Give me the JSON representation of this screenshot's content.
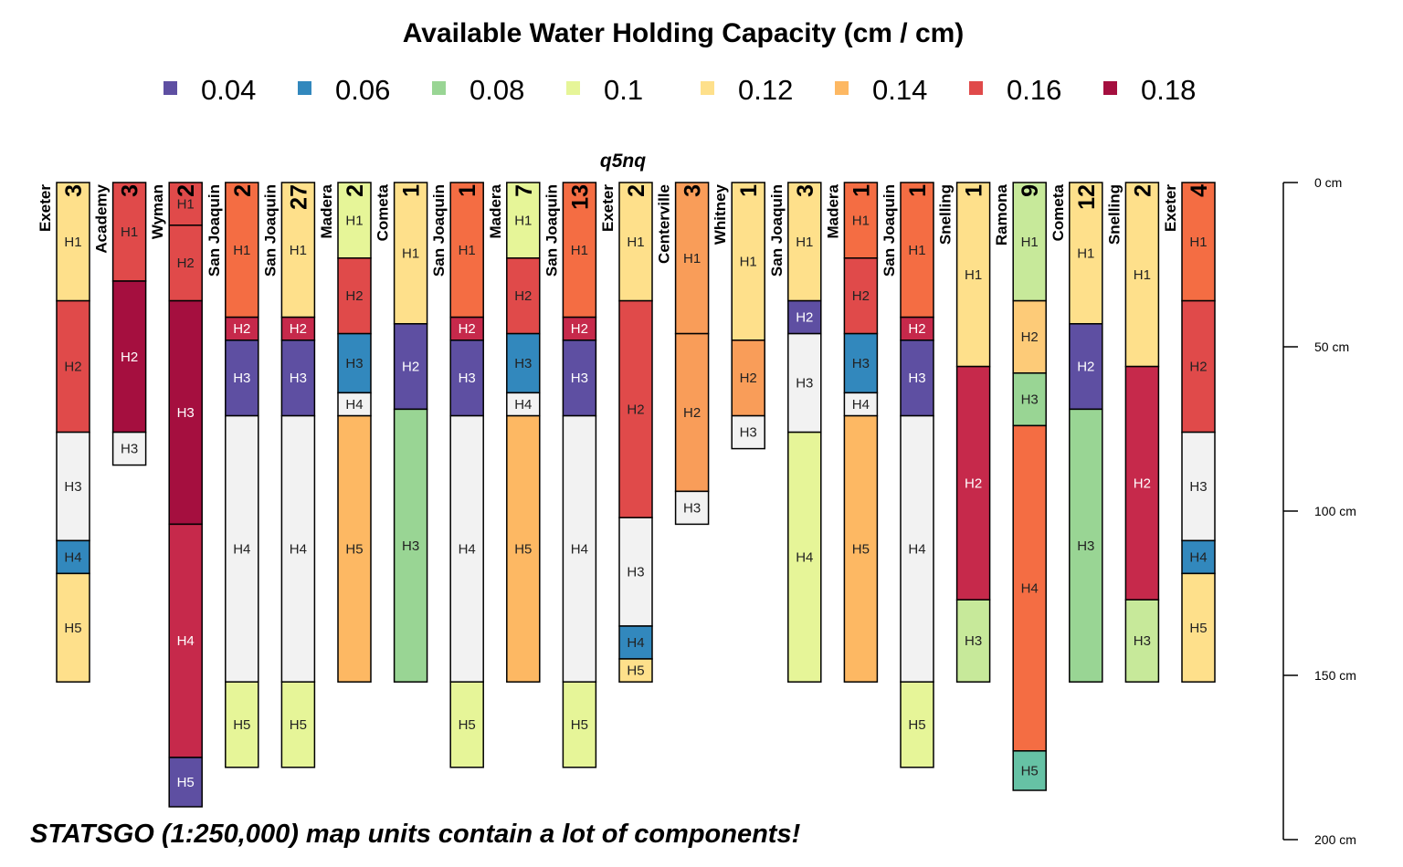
{
  "chart_data": {
    "type": "soil-profile-sketch",
    "title": "Available Water Holding Capacity (cm / cm)",
    "subtitle": "q5nq",
    "caption": "STATSGO (1:250,000) map units contain a lot of components!",
    "legend": [
      {
        "label": "0.04",
        "color": "#5E4FA2"
      },
      {
        "label": "0.06",
        "color": "#3288BD"
      },
      {
        "label": "0.08",
        "color": "#99D594"
      },
      {
        "label": "0.1",
        "color": "#E6F598"
      },
      {
        "label": "0.12",
        "color": "#FEE08B"
      },
      {
        "label": "0.14",
        "color": "#FDB863"
      },
      {
        "label": "0.16",
        "color": "#E04A4A"
      },
      {
        "label": "0.18",
        "color": "#A50F3F"
      }
    ],
    "depth_axis": {
      "unit": "cm",
      "ylim": [
        0,
        200
      ],
      "ticks": [
        "0 cm",
        "50 cm",
        "100 cm",
        "150 cm",
        "200 cm"
      ]
    },
    "profiles": [
      {
        "name": "Exeter",
        "pct": "3",
        "horizons": [
          {
            "hz": "H1",
            "top": 0,
            "bottom": 36,
            "color": "#FEE08B"
          },
          {
            "hz": "H2",
            "top": 36,
            "bottom": 76,
            "color": "#E04A4A"
          },
          {
            "hz": "H3",
            "top": 76,
            "bottom": 109,
            "color": "#F2F2F2"
          },
          {
            "hz": "H4",
            "top": 109,
            "bottom": 119,
            "color": "#3288BD"
          },
          {
            "hz": "H5",
            "top": 119,
            "bottom": 152,
            "color": "#FEE08B"
          }
        ]
      },
      {
        "name": "Academy",
        "pct": "3",
        "horizons": [
          {
            "hz": "H1",
            "top": 0,
            "bottom": 30,
            "color": "#E04A4A"
          },
          {
            "hz": "H2",
            "top": 30,
            "bottom": 76,
            "color": "#A50F3F"
          },
          {
            "hz": "H3",
            "top": 76,
            "bottom": 86,
            "color": "#F2F2F2"
          }
        ]
      },
      {
        "name": "Wyman",
        "pct": "2",
        "horizons": [
          {
            "hz": "H1",
            "top": 0,
            "bottom": 13,
            "color": "#E04A4A"
          },
          {
            "hz": "H2",
            "top": 13,
            "bottom": 36,
            "color": "#E04A4A"
          },
          {
            "hz": "H3",
            "top": 36,
            "bottom": 104,
            "color": "#A50F3F"
          },
          {
            "hz": "H4",
            "top": 104,
            "bottom": 175,
            "color": "#C6294B"
          },
          {
            "hz": "H5",
            "top": 175,
            "bottom": 190,
            "color": "#5E4FA2"
          }
        ]
      },
      {
        "name": "San Joaquin",
        "pct": "2",
        "horizons": [
          {
            "hz": "H1",
            "top": 0,
            "bottom": 41,
            "color": "#F46D43"
          },
          {
            "hz": "H2",
            "top": 41,
            "bottom": 48,
            "color": "#C6294B"
          },
          {
            "hz": "H3",
            "top": 48,
            "bottom": 71,
            "color": "#5E4FA2"
          },
          {
            "hz": "H4",
            "top": 71,
            "bottom": 152,
            "color": "#F2F2F2"
          },
          {
            "hz": "H5",
            "top": 152,
            "bottom": 178,
            "color": "#E6F598"
          }
        ]
      },
      {
        "name": "San Joaquin",
        "pct": "27",
        "horizons": [
          {
            "hz": "H1",
            "top": 0,
            "bottom": 41,
            "color": "#FEE08B"
          },
          {
            "hz": "H2",
            "top": 41,
            "bottom": 48,
            "color": "#C6294B"
          },
          {
            "hz": "H3",
            "top": 48,
            "bottom": 71,
            "color": "#5E4FA2"
          },
          {
            "hz": "H4",
            "top": 71,
            "bottom": 152,
            "color": "#F2F2F2"
          },
          {
            "hz": "H5",
            "top": 152,
            "bottom": 178,
            "color": "#E6F598"
          }
        ]
      },
      {
        "name": "Madera",
        "pct": "2",
        "horizons": [
          {
            "hz": "H1",
            "top": 0,
            "bottom": 23,
            "color": "#E6F598"
          },
          {
            "hz": "H2",
            "top": 23,
            "bottom": 46,
            "color": "#E04A4A"
          },
          {
            "hz": "H3",
            "top": 46,
            "bottom": 64,
            "color": "#3288BD"
          },
          {
            "hz": "H4",
            "top": 64,
            "bottom": 71,
            "color": "#F2F2F2"
          },
          {
            "hz": "H5",
            "top": 71,
            "bottom": 152,
            "color": "#FDB863"
          }
        ]
      },
      {
        "name": "Cometa",
        "pct": "1",
        "horizons": [
          {
            "hz": "H1",
            "top": 0,
            "bottom": 43,
            "color": "#FEE08B"
          },
          {
            "hz": "H2",
            "top": 43,
            "bottom": 69,
            "color": "#5E4FA2"
          },
          {
            "hz": "H3",
            "top": 69,
            "bottom": 152,
            "color": "#99D594"
          }
        ]
      },
      {
        "name": "San Joaquin",
        "pct": "1",
        "horizons": [
          {
            "hz": "H1",
            "top": 0,
            "bottom": 41,
            "color": "#F46D43"
          },
          {
            "hz": "H2",
            "top": 41,
            "bottom": 48,
            "color": "#C6294B"
          },
          {
            "hz": "H3",
            "top": 48,
            "bottom": 71,
            "color": "#5E4FA2"
          },
          {
            "hz": "H4",
            "top": 71,
            "bottom": 152,
            "color": "#F2F2F2"
          },
          {
            "hz": "H5",
            "top": 152,
            "bottom": 178,
            "color": "#E6F598"
          }
        ]
      },
      {
        "name": "Madera",
        "pct": "7",
        "horizons": [
          {
            "hz": "H1",
            "top": 0,
            "bottom": 23,
            "color": "#E6F598"
          },
          {
            "hz": "H2",
            "top": 23,
            "bottom": 46,
            "color": "#E04A4A"
          },
          {
            "hz": "H3",
            "top": 46,
            "bottom": 64,
            "color": "#3288BD"
          },
          {
            "hz": "H4",
            "top": 64,
            "bottom": 71,
            "color": "#F2F2F2"
          },
          {
            "hz": "H5",
            "top": 71,
            "bottom": 152,
            "color": "#FDB863"
          }
        ]
      },
      {
        "name": "San Joaquin",
        "pct": "13",
        "horizons": [
          {
            "hz": "H1",
            "top": 0,
            "bottom": 41,
            "color": "#F46D43"
          },
          {
            "hz": "H2",
            "top": 41,
            "bottom": 48,
            "color": "#C6294B"
          },
          {
            "hz": "H3",
            "top": 48,
            "bottom": 71,
            "color": "#5E4FA2"
          },
          {
            "hz": "H4",
            "top": 71,
            "bottom": 152,
            "color": "#F2F2F2"
          },
          {
            "hz": "H5",
            "top": 152,
            "bottom": 178,
            "color": "#E6F598"
          }
        ]
      },
      {
        "name": "Exeter",
        "pct": "2",
        "horizons": [
          {
            "hz": "H1",
            "top": 0,
            "bottom": 36,
            "color": "#FEE08B"
          },
          {
            "hz": "H2",
            "top": 36,
            "bottom": 102,
            "color": "#E04A4A"
          },
          {
            "hz": "H3",
            "top": 102,
            "bottom": 135,
            "color": "#F2F2F2"
          },
          {
            "hz": "H4",
            "top": 135,
            "bottom": 145,
            "color": "#3288BD"
          },
          {
            "hz": "H5",
            "top": 145,
            "bottom": 152,
            "color": "#FEE08B"
          }
        ]
      },
      {
        "name": "Centerville",
        "pct": "3",
        "horizons": [
          {
            "hz": "H1",
            "top": 0,
            "bottom": 46,
            "color": "#F99D59"
          },
          {
            "hz": "H2",
            "top": 46,
            "bottom": 94,
            "color": "#F99D59"
          },
          {
            "hz": "H3",
            "top": 94,
            "bottom": 104,
            "color": "#F2F2F2"
          }
        ]
      },
      {
        "name": "Whitney",
        "pct": "1",
        "horizons": [
          {
            "hz": "H1",
            "top": 0,
            "bottom": 48,
            "color": "#FEE08B"
          },
          {
            "hz": "H2",
            "top": 48,
            "bottom": 71,
            "color": "#F99D59"
          },
          {
            "hz": "H3",
            "top": 71,
            "bottom": 81,
            "color": "#F2F2F2"
          }
        ]
      },
      {
        "name": "San Joaquin",
        "pct": "3",
        "horizons": [
          {
            "hz": "H1",
            "top": 0,
            "bottom": 36,
            "color": "#FEE08B"
          },
          {
            "hz": "H2",
            "top": 36,
            "bottom": 46,
            "color": "#5E4FA2"
          },
          {
            "hz": "H3",
            "top": 46,
            "bottom": 76,
            "color": "#F2F2F2"
          },
          {
            "hz": "H4",
            "top": 76,
            "bottom": 152,
            "color": "#E6F598"
          }
        ]
      },
      {
        "name": "Madera",
        "pct": "1",
        "horizons": [
          {
            "hz": "H1",
            "top": 0,
            "bottom": 23,
            "color": "#F46D43"
          },
          {
            "hz": "H2",
            "top": 23,
            "bottom": 46,
            "color": "#E04A4A"
          },
          {
            "hz": "H3",
            "top": 46,
            "bottom": 64,
            "color": "#3288BD"
          },
          {
            "hz": "H4",
            "top": 64,
            "bottom": 71,
            "color": "#F2F2F2"
          },
          {
            "hz": "H5",
            "top": 71,
            "bottom": 152,
            "color": "#FDB863"
          }
        ]
      },
      {
        "name": "San Joaquin",
        "pct": "1",
        "horizons": [
          {
            "hz": "H1",
            "top": 0,
            "bottom": 41,
            "color": "#F46D43"
          },
          {
            "hz": "H2",
            "top": 41,
            "bottom": 48,
            "color": "#C6294B"
          },
          {
            "hz": "H3",
            "top": 48,
            "bottom": 71,
            "color": "#5E4FA2"
          },
          {
            "hz": "H4",
            "top": 71,
            "bottom": 152,
            "color": "#F2F2F2"
          },
          {
            "hz": "H5",
            "top": 152,
            "bottom": 178,
            "color": "#E6F598"
          }
        ]
      },
      {
        "name": "Snelling",
        "pct": "1",
        "horizons": [
          {
            "hz": "H1",
            "top": 0,
            "bottom": 56,
            "color": "#FEE08B"
          },
          {
            "hz": "H2",
            "top": 56,
            "bottom": 127,
            "color": "#C6294B"
          },
          {
            "hz": "H3",
            "top": 127,
            "bottom": 152,
            "color": "#C7E99A"
          }
        ]
      },
      {
        "name": "Ramona",
        "pct": "9",
        "horizons": [
          {
            "hz": "H1",
            "top": 0,
            "bottom": 36,
            "color": "#C7E99A"
          },
          {
            "hz": "H2",
            "top": 36,
            "bottom": 58,
            "color": "#FDCB78"
          },
          {
            "hz": "H3",
            "top": 58,
            "bottom": 74,
            "color": "#99D594"
          },
          {
            "hz": "H4",
            "top": 74,
            "bottom": 173,
            "color": "#F46D43"
          },
          {
            "hz": "H5",
            "top": 173,
            "bottom": 185,
            "color": "#66C2A5"
          }
        ]
      },
      {
        "name": "Cometa",
        "pct": "12",
        "horizons": [
          {
            "hz": "H1",
            "top": 0,
            "bottom": 43,
            "color": "#FEE08B"
          },
          {
            "hz": "H2",
            "top": 43,
            "bottom": 69,
            "color": "#5E4FA2"
          },
          {
            "hz": "H3",
            "top": 69,
            "bottom": 152,
            "color": "#99D594"
          }
        ]
      },
      {
        "name": "Snelling",
        "pct": "2",
        "horizons": [
          {
            "hz": "H1",
            "top": 0,
            "bottom": 56,
            "color": "#FEE08B"
          },
          {
            "hz": "H2",
            "top": 56,
            "bottom": 127,
            "color": "#C6294B"
          },
          {
            "hz": "H3",
            "top": 127,
            "bottom": 152,
            "color": "#C7E99A"
          }
        ]
      },
      {
        "name": "Exeter",
        "pct": "4",
        "horizons": [
          {
            "hz": "H1",
            "top": 0,
            "bottom": 36,
            "color": "#F46D43"
          },
          {
            "hz": "H2",
            "top": 36,
            "bottom": 76,
            "color": "#E04A4A"
          },
          {
            "hz": "H3",
            "top": 76,
            "bottom": 109,
            "color": "#F2F2F2"
          },
          {
            "hz": "H4",
            "top": 109,
            "bottom": 119,
            "color": "#3288BD"
          },
          {
            "hz": "H5",
            "top": 119,
            "bottom": 152,
            "color": "#FEE08B"
          }
        ]
      }
    ]
  }
}
